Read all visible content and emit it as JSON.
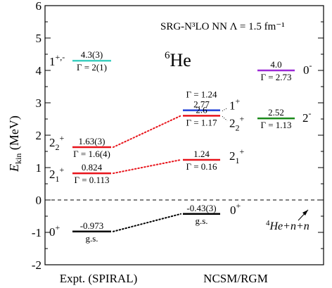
{
  "chart_data": {
    "type": "level-scheme",
    "ylabel_main": "E",
    "ylabel_sub": "kin",
    "ylabel_unit": " (MeV)",
    "ylim": [
      -2,
      6
    ],
    "yticks": [
      "-2",
      "-1",
      "0",
      "1",
      "2",
      "3",
      "4",
      "5",
      "6"
    ],
    "ytick_values": [
      -2,
      -1,
      0,
      1,
      2,
      3,
      4,
      5,
      6
    ],
    "header": "SRG-N³LO NN  Λ = 1.5 fm⁻¹",
    "nucleus_mass": "6",
    "nucleus_symbol": "He",
    "columns": [
      "Expt. (SPIRAL)",
      "NCSM/RGM"
    ],
    "threshold": {
      "energy": 0,
      "label_mass": "4",
      "label_rest": "He+n+n"
    },
    "levels": [
      {
        "id": "expt-gs",
        "column": 0,
        "energy": -0.973,
        "color": "#000000",
        "top_label": "-0.973",
        "bottom_label": "g.s.",
        "j": "0",
        "p": "+",
        "sub": ""
      },
      {
        "id": "expt-21",
        "column": 0,
        "energy": 0.824,
        "color": "#e8141b",
        "top_label": "0.824",
        "bottom_label": "Γ = 0.113",
        "j": "2",
        "p": "+",
        "sub": "1"
      },
      {
        "id": "expt-22",
        "column": 0,
        "energy": 1.63,
        "color": "#e8141b",
        "top_label": "1.63(3)",
        "bottom_label": "Γ = 1.6(4)",
        "j": "2",
        "p": "+",
        "sub": "2"
      },
      {
        "id": "expt-1",
        "column": 0,
        "energy": 4.3,
        "color": "#3ecfc0",
        "top_label": "4.3(3)",
        "bottom_label": "Γ = 2(1)",
        "j": "1",
        "p": "+,-",
        "sub": ""
      },
      {
        "id": "rgm-gs",
        "column": 1,
        "energy": -0.43,
        "color": "#000000",
        "top_label": "-0.43(3)",
        "bottom_label": "g.s.",
        "j": "0",
        "p": "+",
        "sub": ""
      },
      {
        "id": "rgm-21",
        "column": 1,
        "energy": 1.24,
        "color": "#e8141b",
        "top_label": "1.24",
        "bottom_label": "Γ = 0.16",
        "j": "2",
        "p": "+",
        "sub": "1"
      },
      {
        "id": "rgm-22",
        "column": 1,
        "energy": 2.6,
        "color": "#e8141b",
        "top_label": "2.6",
        "bottom_label": "Γ = 1.17",
        "j": "2",
        "p": "+",
        "sub": "2"
      },
      {
        "id": "rgm-1p",
        "column": 1,
        "energy": 2.77,
        "color": "#1f3fd6",
        "top_label": "2.77",
        "bottom_label": "",
        "width_label": "Γ = 1.24",
        "j": "1",
        "p": "+",
        "sub": ""
      },
      {
        "id": "rgm-2m",
        "column": 2,
        "energy": 2.52,
        "color": "#1a8a1a",
        "top_label": "2.52",
        "bottom_label": "Γ = 1.13",
        "j": "2",
        "p": "-",
        "sub": ""
      },
      {
        "id": "rgm-0m",
        "column": 2,
        "energy": 4.0,
        "color": "#9c2ad6",
        "top_label": "4.0",
        "bottom_label": "Γ = 2.73",
        "j": "0",
        "p": "-",
        "sub": ""
      }
    ],
    "connections": [
      {
        "from": "expt-gs",
        "to": "rgm-gs",
        "color": "#000000"
      },
      {
        "from": "expt-21",
        "to": "rgm-21",
        "color": "#e8141b"
      },
      {
        "from": "expt-22",
        "to": "rgm-22",
        "color": "#e8141b"
      }
    ]
  }
}
